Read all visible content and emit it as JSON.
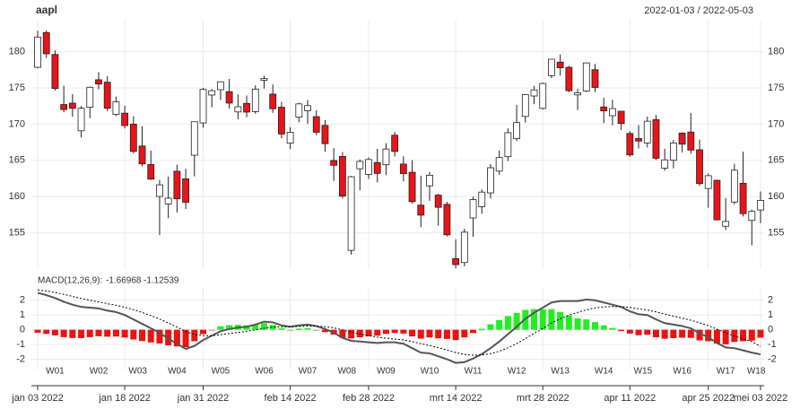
{
  "chart_data": [
    {
      "type": "candlestick",
      "title": "aapl",
      "subtitle": "2022-01-03 / 2022-05-03",
      "x": [
        "2022-01-03",
        "2022-01-04",
        "2022-01-05",
        "2022-01-06",
        "2022-01-07",
        "2022-01-10",
        "2022-01-11",
        "2022-01-12",
        "2022-01-13",
        "2022-01-14",
        "2022-01-18",
        "2022-01-19",
        "2022-01-20",
        "2022-01-21",
        "2022-01-24",
        "2022-01-25",
        "2022-01-26",
        "2022-01-27",
        "2022-01-28",
        "2022-01-31",
        "2022-02-01",
        "2022-02-02",
        "2022-02-03",
        "2022-02-04",
        "2022-02-07",
        "2022-02-08",
        "2022-02-09",
        "2022-02-10",
        "2022-02-11",
        "2022-02-14",
        "2022-02-15",
        "2022-02-16",
        "2022-02-17",
        "2022-02-18",
        "2022-02-22",
        "2022-02-23",
        "2022-02-24",
        "2022-02-25",
        "2022-02-28",
        "2022-03-01",
        "2022-03-02",
        "2022-03-03",
        "2022-03-04",
        "2022-03-07",
        "2022-03-08",
        "2022-03-09",
        "2022-03-10",
        "2022-03-11",
        "2022-03-14",
        "2022-03-15",
        "2022-03-16",
        "2022-03-17",
        "2022-03-18",
        "2022-03-21",
        "2022-03-22",
        "2022-03-23",
        "2022-03-24",
        "2022-03-25",
        "2022-03-28",
        "2022-03-29",
        "2022-03-30",
        "2022-03-31",
        "2022-04-01",
        "2022-04-04",
        "2022-04-05",
        "2022-04-06",
        "2022-04-07",
        "2022-04-08",
        "2022-04-11",
        "2022-04-12",
        "2022-04-13",
        "2022-04-14",
        "2022-04-18",
        "2022-04-19",
        "2022-04-20",
        "2022-04-21",
        "2022-04-22",
        "2022-04-25",
        "2022-04-26",
        "2022-04-27",
        "2022-04-28",
        "2022-04-29",
        "2022-05-02",
        "2022-05-03"
      ],
      "open": [
        177.83,
        182.63,
        179.61,
        172.7,
        172.89,
        169.08,
        172.32,
        176.12,
        175.78,
        171.34,
        171.51,
        170.0,
        166.98,
        164.42,
        160.02,
        158.98,
        163.5,
        162.45,
        165.71,
        170.16,
        174.01,
        174.75,
        174.48,
        171.68,
        172.86,
        171.73,
        176.05,
        174.14,
        172.33,
        167.37,
        170.97,
        171.85,
        171.03,
        169.82,
        164.98,
        165.54,
        152.58,
        163.84,
        163.06,
        164.7,
        164.39,
        168.47,
        164.49,
        163.36,
        158.82,
        161.48,
        160.2,
        158.93,
        151.45,
        150.9,
        157.05,
        158.61,
        160.51,
        163.51,
        165.51,
        167.99,
        171.06,
        173.88,
        172.17,
        176.69,
        178.55,
        177.84,
        174.03,
        174.57,
        177.5,
        172.36,
        171.16,
        171.78,
        168.71,
        168.02,
        167.39,
        170.62,
        163.92,
        165.02,
        168.76,
        168.91,
        166.46,
        161.12,
        162.25,
        155.91,
        159.25,
        161.84,
        156.71,
        158.15
      ],
      "high": [
        182.88,
        182.94,
        180.17,
        175.3,
        174.14,
        172.5,
        175.18,
        177.18,
        176.62,
        173.78,
        172.54,
        171.08,
        169.68,
        166.33,
        162.3,
        162.76,
        164.39,
        163.84,
        170.35,
        175.0,
        174.84,
        175.88,
        176.24,
        174.1,
        173.95,
        175.35,
        176.65,
        175.48,
        173.08,
        169.58,
        172.95,
        173.34,
        171.91,
        170.54,
        166.69,
        166.15,
        162.85,
        165.12,
        165.42,
        166.6,
        167.36,
        168.91,
        165.55,
        165.02,
        162.88,
        163.41,
        160.39,
        159.28,
        154.12,
        155.57,
        160.0,
        161.0,
        164.48,
        166.35,
        169.42,
        172.64,
        174.14,
        175.28,
        175.73,
        179.01,
        179.61,
        178.03,
        174.88,
        178.49,
        178.3,
        173.63,
        173.36,
        171.78,
        169.03,
        169.87,
        171.04,
        171.27,
        166.6,
        167.82,
        168.88,
        171.53,
        167.87,
        163.17,
        162.34,
        159.79,
        164.52,
        166.2,
        158.23,
        160.71
      ],
      "low": [
        177.71,
        179.12,
        174.64,
        171.64,
        171.03,
        168.17,
        170.82,
        174.82,
        171.79,
        171.09,
        169.41,
        165.94,
        164.18,
        162.3,
        154.7,
        157.02,
        157.82,
        158.28,
        162.8,
        169.51,
        172.31,
        173.33,
        172.12,
        170.68,
        170.95,
        171.43,
        174.9,
        171.55,
        168.04,
        166.56,
        170.25,
        170.05,
        168.47,
        166.19,
        162.15,
        159.75,
        152.0,
        160.87,
        162.43,
        161.97,
        162.95,
        165.55,
        162.1,
        159.04,
        155.8,
        159.41,
        155.98,
        154.5,
        150.1,
        150.38,
        154.46,
        157.63,
        159.76,
        163.01,
        164.91,
        167.65,
        170.21,
        172.75,
        172.0,
        176.34,
        176.7,
        174.4,
        171.94,
        174.44,
        174.42,
        170.13,
        169.85,
        169.2,
        165.5,
        166.64,
        166.77,
        165.04,
        163.57,
        163.91,
        166.1,
        165.91,
        161.5,
        158.46,
        156.72,
        155.38,
        158.93,
        157.25,
        153.27,
        156.32
      ],
      "close": [
        182.01,
        179.7,
        174.92,
        172.0,
        172.17,
        172.19,
        175.08,
        175.53,
        172.19,
        173.07,
        169.8,
        166.23,
        164.51,
        162.41,
        161.62,
        159.78,
        159.69,
        159.22,
        170.33,
        174.78,
        174.61,
        175.84,
        172.9,
        172.39,
        171.66,
        174.83,
        176.28,
        172.12,
        168.64,
        168.88,
        172.79,
        172.55,
        168.88,
        167.3,
        164.32,
        160.07,
        162.74,
        164.85,
        165.12,
        163.2,
        166.56,
        166.23,
        163.17,
        159.3,
        157.44,
        162.95,
        158.52,
        154.73,
        150.62,
        155.09,
        159.59,
        160.62,
        163.98,
        165.38,
        168.82,
        170.21,
        174.07,
        174.72,
        175.6,
        178.96,
        177.77,
        174.61,
        174.31,
        178.44,
        175.06,
        171.83,
        172.14,
        170.09,
        165.75,
        167.66,
        170.4,
        165.29,
        165.07,
        167.4,
        167.23,
        166.42,
        161.79,
        162.88,
        156.8,
        156.57,
        163.64,
        157.65,
        157.96,
        159.48
      ],
      "up_color": "#ffffff",
      "down_color": "#e8141a",
      "wick_color": "#222222",
      "ylim": [
        150,
        184.4
      ],
      "yticks": [
        155,
        160,
        165,
        170,
        175,
        180
      ],
      "grid": true
    },
    {
      "type": "macd",
      "label": "MACD(12,26,9):",
      "series": [
        {
          "color": "#555555",
          "style": "solid",
          "values": [
            2.5,
            2.35,
            2.15,
            1.9,
            1.7,
            1.55,
            1.5,
            1.45,
            1.3,
            1.2,
            1.0,
            0.7,
            0.4,
            0.1,
            -0.2,
            -0.6,
            -0.95,
            -1.3,
            -1.1,
            -0.7,
            -0.4,
            -0.1,
            0.05,
            0.15,
            0.2,
            0.35,
            0.55,
            0.5,
            0.3,
            0.2,
            0.3,
            0.35,
            0.25,
            0.05,
            -0.2,
            -0.55,
            -0.75,
            -0.8,
            -0.85,
            -0.9,
            -0.85,
            -0.85,
            -0.95,
            -1.25,
            -1.55,
            -1.6,
            -1.8,
            -2.0,
            -2.25,
            -2.2,
            -1.95,
            -1.65,
            -1.25,
            -0.8,
            -0.3,
            0.2,
            0.75,
            1.15,
            1.5,
            1.85,
            1.95,
            1.95,
            1.95,
            2.05,
            2.0,
            1.85,
            1.7,
            1.55,
            1.25,
            1.05,
            1.0,
            0.7,
            0.45,
            0.35,
            0.25,
            0.1,
            -0.25,
            -0.5,
            -0.9,
            -1.2,
            -1.25,
            -1.4,
            -1.55,
            -1.66968
          ]
        },
        {
          "color": "#000000",
          "style": "dotted",
          "values": [
            2.7,
            2.63,
            2.53,
            2.4,
            2.26,
            2.12,
            2.0,
            1.89,
            1.77,
            1.66,
            1.53,
            1.36,
            1.17,
            0.96,
            0.73,
            0.46,
            0.18,
            -0.12,
            -0.32,
            -0.4,
            -0.4,
            -0.34,
            -0.26,
            -0.18,
            -0.1,
            -0.01,
            0.1,
            0.18,
            0.2,
            0.2,
            0.22,
            0.25,
            0.25,
            0.21,
            0.13,
            -0.01,
            -0.16,
            -0.29,
            -0.4,
            -0.5,
            -0.57,
            -0.63,
            -0.69,
            -0.8,
            -0.95,
            -1.08,
            -1.22,
            -1.38,
            -1.55,
            -1.68,
            -1.73,
            -1.71,
            -1.62,
            -1.46,
            -1.23,
            -0.94,
            -0.6,
            -0.25,
            0.1,
            0.45,
            0.75,
            0.99,
            1.18,
            1.35,
            1.48,
            1.55,
            1.58,
            1.57,
            1.51,
            1.42,
            1.34,
            1.21,
            1.06,
            0.92,
            0.79,
            0.65,
            0.47,
            0.28,
            0.04,
            -0.21,
            -0.42,
            -0.62,
            -0.81,
            -1.12539
          ]
        }
      ],
      "histogram": {
        "up_color": "#22ee22",
        "down_color": "#ee1111",
        "zero_color": "#bbbbbb",
        "values": [
          -0.2,
          -0.28,
          -0.38,
          -0.5,
          -0.56,
          -0.57,
          -0.5,
          -0.44,
          -0.47,
          -0.46,
          -0.53,
          -0.66,
          -0.77,
          -0.86,
          -0.93,
          -1.06,
          -1.13,
          -1.18,
          -0.78,
          -0.3,
          0,
          0.24,
          0.31,
          0.33,
          0.3,
          0.36,
          0.45,
          0.32,
          0.1,
          0,
          0.08,
          0.1,
          0,
          -0.16,
          -0.33,
          -0.54,
          -0.59,
          -0.51,
          -0.45,
          -0.4,
          -0.28,
          -0.22,
          -0.26,
          -0.45,
          -0.6,
          -0.52,
          -0.58,
          -0.62,
          -0.7,
          -0.52,
          -0.22,
          0.06,
          0.37,
          0.66,
          0.93,
          1.14,
          1.35,
          1.4,
          1.4,
          1.4,
          1.2,
          0.96,
          0.77,
          0.7,
          0.52,
          0.3,
          0.12,
          -0.02,
          -0.26,
          -0.37,
          -0.34,
          -0.51,
          -0.61,
          -0.57,
          -0.54,
          -0.55,
          -0.72,
          -0.78,
          -0.94,
          -0.99,
          -0.83,
          -0.78,
          -0.74,
          -0.54
        ]
      },
      "ylim": [
        -2.7,
        2.9
      ],
      "yticks": [
        -2,
        -1,
        0,
        1,
        2
      ],
      "grid": true,
      "weeks": [
        "W01",
        "W02",
        "W03",
        "W04",
        "W05",
        "W06",
        "W07",
        "W08",
        "W09",
        "W10",
        "W11",
        "W12",
        "W13",
        "W14",
        "W15",
        "W16",
        "W17",
        "W18"
      ],
      "xticks": [
        {
          "value": "2022-01-03",
          "label": "jan 03 2022"
        },
        {
          "value": "2022-01-18",
          "label": "jan 18 2022"
        },
        {
          "value": "2022-01-31",
          "label": "jan 31 2022"
        },
        {
          "value": "2022-02-14",
          "label": "feb 14 2022"
        },
        {
          "value": "2022-02-28",
          "label": "feb 28 2022"
        },
        {
          "value": "2022-03-14",
          "label": "mrt 14 2022"
        },
        {
          "value": "2022-03-28",
          "label": "mrt 28 2022"
        },
        {
          "value": "2022-04-11",
          "label": "apr 11 2022"
        },
        {
          "value": "2022-04-25",
          "label": "apr 25 2022"
        },
        {
          "value": "2022-05-03",
          "label": "mei 03 2022"
        }
      ]
    }
  ]
}
